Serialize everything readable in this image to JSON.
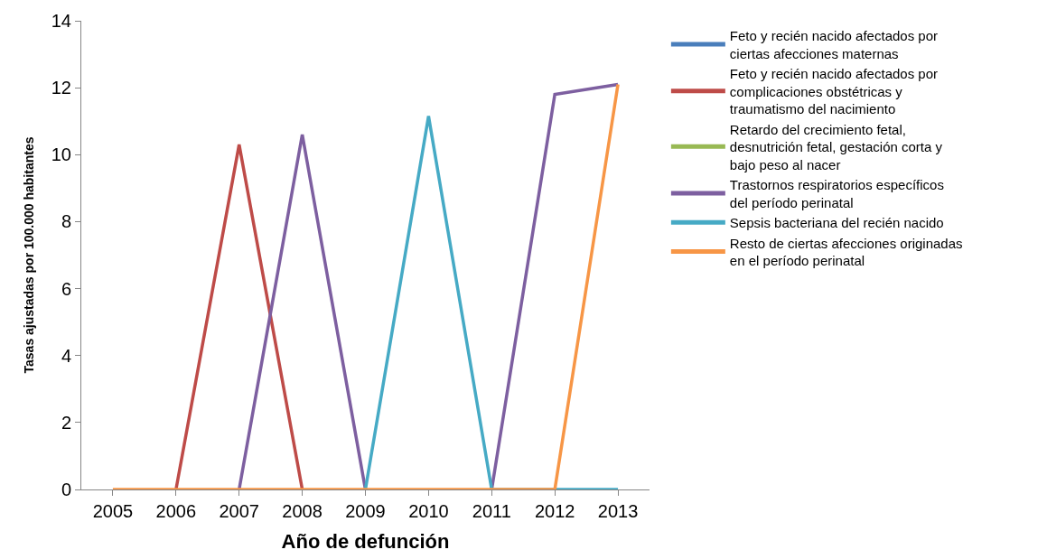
{
  "chart_data": {
    "type": "line",
    "xlabel": "Año de defunción",
    "ylabel": "Tasas ajustadas por 100.000 habitantes",
    "categories": [
      "2005",
      "2006",
      "2007",
      "2008",
      "2009",
      "2010",
      "2011",
      "2012",
      "2013"
    ],
    "ylim": [
      0,
      14
    ],
    "yticks": [
      0,
      2,
      4,
      6,
      8,
      10,
      12,
      14
    ],
    "legend": "right",
    "marker": "none",
    "line_style": "solid",
    "series": [
      {
        "name": "Feto y recién nacido afectados por ciertas afecciones maternas",
        "color": "#4a7ebb",
        "values": [
          null,
          null,
          null,
          null,
          null,
          null,
          null,
          null,
          null
        ]
      },
      {
        "name": "Feto y recién nacido afectados por complicaciones obstétricas y traumatismo del nacimiento",
        "color": "#be4b48",
        "values": [
          null,
          0,
          10.3,
          0,
          null,
          null,
          null,
          null,
          null
        ]
      },
      {
        "name": "Retardo del crecimiento fetal, desnutrición fetal, gestación corta y bajo peso al nacer",
        "color": "#98b954",
        "values": [
          null,
          null,
          null,
          null,
          null,
          null,
          null,
          null,
          null
        ]
      },
      {
        "name": "Trastornos respiratorios específicos del período perinatal",
        "color": "#7d5fa0",
        "values": [
          null,
          null,
          0,
          10.6,
          0,
          null,
          0,
          11.8,
          12.1
        ]
      },
      {
        "name": "Sepsis bacteriana del recién nacido",
        "color": "#46aac5",
        "values": [
          null,
          null,
          null,
          null,
          0,
          11.15,
          0,
          0,
          0
        ]
      },
      {
        "name": "Resto de ciertas afecciones originadas en el período perinatal",
        "color": "#f79646",
        "values": [
          0,
          0,
          0,
          0,
          0,
          0,
          0,
          0,
          12.1
        ]
      }
    ]
  }
}
